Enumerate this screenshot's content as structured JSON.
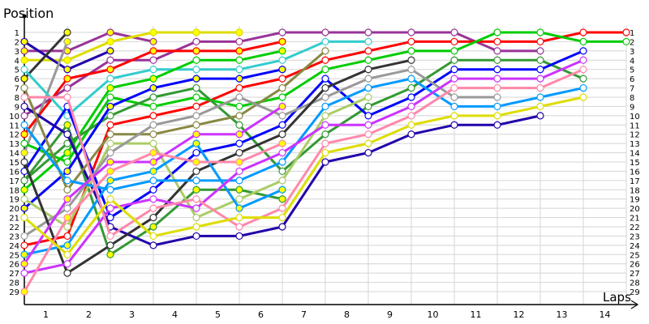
{
  "chart_data": {
    "type": "line",
    "title": "",
    "ylabel": "Position",
    "xlabel": "Laps",
    "x_ticks": [
      "1",
      "2",
      "3",
      "4",
      "5",
      "6",
      "7",
      "8",
      "9",
      "10",
      "11",
      "12",
      "13",
      "14"
    ],
    "y_ticks": [
      1,
      2,
      3,
      4,
      5,
      6,
      7,
      8,
      9,
      10,
      11,
      12,
      13,
      14,
      15,
      16,
      17,
      18,
      19,
      20,
      21,
      22,
      23,
      24,
      25,
      26,
      27,
      28,
      29
    ],
    "ylim": [
      1,
      29
    ],
    "y_inverted": true,
    "grid": true,
    "legend": "none",
    "series": [
      {
        "color": "#993399",
        "values": [
          3,
          3,
          1,
          2
        ],
        "filled": [
          0,
          1,
          2,
          3
        ]
      },
      {
        "color": "#993399",
        "values": [
          10,
          7,
          4,
          4,
          2,
          2,
          1,
          1,
          1,
          1,
          1,
          3,
          3
        ],
        "filled": []
      },
      {
        "color": "#dddd00",
        "values": [
          4,
          4,
          2,
          1,
          1,
          1
        ],
        "filled": [
          0,
          1,
          2,
          3,
          4,
          5
        ]
      },
      {
        "color": "#2200aa",
        "values": [
          2,
          5,
          3
        ],
        "filled": [
          0,
          1,
          2
        ]
      },
      {
        "color": "#333333",
        "values": [
          6,
          1
        ],
        "filled": [
          0,
          1
        ]
      },
      {
        "color": "#999999",
        "values": [
          14,
          2
        ],
        "filled": [
          0,
          1
        ]
      },
      {
        "color": "#ff0000",
        "values": [
          12,
          6,
          5,
          3,
          3,
          3,
          2
        ],
        "filled": [
          0,
          1,
          2,
          3,
          4,
          5,
          6
        ]
      },
      {
        "color": "#ff0000",
        "values": [
          24,
          23,
          11,
          10,
          9,
          7,
          6,
          4,
          3,
          2,
          2,
          2,
          2,
          1,
          1
        ],
        "filled": []
      },
      {
        "color": "#33cccc",
        "values": [
          5,
          10,
          6,
          5,
          5,
          5,
          4,
          2,
          2
        ],
        "filled": []
      },
      {
        "color": "#00cc00",
        "values": [
          18,
          14,
          7,
          6,
          4,
          4,
          3
        ],
        "filled": [
          0,
          1,
          2,
          3,
          6
        ]
      },
      {
        "color": "#00cc00",
        "values": [
          13,
          15,
          8,
          9,
          8,
          9,
          8,
          5,
          4,
          3,
          3,
          1,
          1,
          2,
          2
        ],
        "filled": []
      },
      {
        "color": "#339933",
        "values": [
          17,
          13,
          10,
          8,
          7,
          11,
          16,
          12,
          9,
          7,
          4,
          4,
          4,
          6
        ],
        "filled": []
      },
      {
        "color": "#339933",
        "values": [
          17,
          11,
          25,
          22,
          18,
          18,
          19
        ],
        "filled": [
          1,
          2,
          3,
          4,
          5,
          6
        ]
      },
      {
        "color": "#0000ff",
        "values": [
          20,
          16,
          9,
          7,
          6,
          6,
          5
        ],
        "filled": [
          0,
          1,
          2,
          3,
          4,
          5,
          6
        ]
      },
      {
        "color": "#0000ff",
        "values": [
          16,
          9,
          21,
          18,
          14,
          13,
          11,
          6,
          10,
          8,
          5,
          5,
          5,
          3
        ],
        "filled": []
      },
      {
        "color": "#2200aa",
        "values": [
          9,
          12,
          22,
          24,
          23,
          23,
          22,
          15,
          14,
          12,
          11,
          11,
          10
        ],
        "filled": []
      },
      {
        "color": "#888844",
        "values": [
          7,
          18,
          12,
          12,
          11,
          10,
          7,
          3
        ],
        "filled": []
      },
      {
        "color": "#aacc66",
        "values": [
          19,
          22,
          13,
          13,
          21,
          19,
          17,
          10,
          8
        ],
        "filled": []
      },
      {
        "color": "#999999",
        "values": [
          23,
          20,
          14,
          11,
          10,
          8,
          10,
          8,
          6,
          5,
          8,
          8
        ],
        "filled": []
      },
      {
        "color": "#333333",
        "values": [
          15,
          27,
          24,
          21,
          16,
          14,
          12,
          7,
          5,
          4
        ],
        "filled": []
      },
      {
        "color": "#0099ff",
        "values": [
          25,
          24,
          17,
          16,
          13,
          20,
          18
        ],
        "filled": [
          0,
          1,
          2,
          3,
          4,
          5,
          6
        ]
      },
      {
        "color": "#0099ff",
        "values": [
          11,
          17,
          18,
          17,
          17,
          17,
          15,
          9,
          7,
          6,
          9,
          9,
          8,
          7
        ],
        "filled": []
      },
      {
        "color": "#cc33ff",
        "values": [
          26,
          19,
          15,
          15,
          12,
          12,
          9
        ],
        "filled": [
          0,
          1,
          2,
          3,
          4,
          5,
          6
        ]
      },
      {
        "color": "#cc33ff",
        "values": [
          27,
          26,
          20,
          19,
          20,
          16,
          14,
          11,
          11,
          9,
          6,
          6,
          6,
          4
        ],
        "filled": []
      },
      {
        "color": "#ff88aa",
        "values": [
          8,
          8,
          23,
          20,
          19,
          22,
          20,
          13,
          12,
          10,
          7,
          7,
          7,
          5
        ],
        "filled": []
      },
      {
        "color": "#ff88aa",
        "values": [
          29,
          21,
          16,
          14,
          15,
          15,
          13
        ],
        "filled": [
          0,
          1,
          2,
          3,
          4,
          5,
          6
        ]
      },
      {
        "color": "#dddd00",
        "values": [
          21,
          25,
          19,
          23,
          22,
          21,
          21,
          14,
          13,
          11,
          10,
          10,
          9,
          8
        ],
        "filled": []
      }
    ]
  }
}
